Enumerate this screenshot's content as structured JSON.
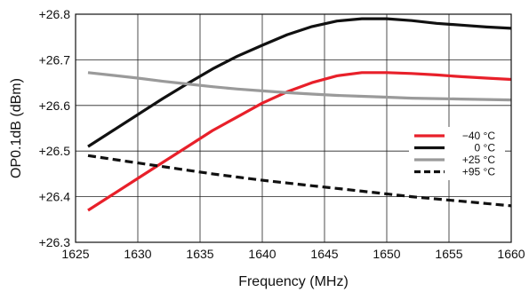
{
  "chart_data": {
    "type": "line",
    "title": "",
    "xlabel": "Frequency (MHz)",
    "ylabel": "OP0.1dB (dBm)",
    "xlim": [
      1625,
      1660
    ],
    "ylim": [
      26.3,
      26.8
    ],
    "xticks": [
      "1625",
      "1630",
      "1635",
      "1640",
      "1645",
      "1650",
      "1655",
      "1660"
    ],
    "yticks": [
      "+26.3",
      "+26.4",
      "+26.5",
      "+26.6",
      "+26.7",
      "+26.8"
    ],
    "grid": true,
    "legend_position": "center-right",
    "series": [
      {
        "name": "−40 °C",
        "color": "#e8202a",
        "dash": "solid",
        "x": [
          1626,
          1628,
          1630,
          1632,
          1634,
          1636,
          1638,
          1640,
          1642,
          1644,
          1646,
          1648,
          1650,
          1652,
          1654,
          1656,
          1658,
          1660
        ],
        "y": [
          26.37,
          26.405,
          26.44,
          26.475,
          26.51,
          26.545,
          26.575,
          26.605,
          26.63,
          26.65,
          26.665,
          26.672,
          26.672,
          26.67,
          26.667,
          26.663,
          26.66,
          26.657
        ]
      },
      {
        "name": "0 °C",
        "color": "#111111",
        "dash": "solid",
        "x": [
          1626,
          1628,
          1630,
          1632,
          1634,
          1636,
          1638,
          1640,
          1642,
          1644,
          1646,
          1648,
          1650,
          1652,
          1654,
          1656,
          1658,
          1660
        ],
        "y": [
          26.51,
          26.545,
          26.58,
          26.615,
          26.648,
          26.68,
          26.708,
          26.732,
          26.755,
          26.773,
          26.785,
          26.79,
          26.79,
          26.786,
          26.78,
          26.776,
          26.772,
          26.769
        ]
      },
      {
        "name": "+25 °C",
        "color": "#9a9a9a",
        "dash": "solid",
        "x": [
          1626,
          1628,
          1630,
          1632,
          1634,
          1636,
          1638,
          1640,
          1642,
          1644,
          1646,
          1648,
          1650,
          1652,
          1654,
          1656,
          1658,
          1660
        ],
        "y": [
          26.672,
          26.666,
          26.66,
          26.653,
          26.647,
          26.641,
          26.636,
          26.632,
          26.628,
          26.625,
          26.622,
          26.62,
          26.618,
          26.616,
          26.615,
          26.614,
          26.613,
          26.612
        ]
      },
      {
        "name": "+95 °C",
        "color": "#111111",
        "dash": "dashed",
        "x": [
          1626,
          1628,
          1630,
          1632,
          1634,
          1636,
          1638,
          1640,
          1642,
          1644,
          1646,
          1648,
          1650,
          1652,
          1654,
          1656,
          1658,
          1660
        ],
        "y": [
          26.49,
          26.482,
          26.474,
          26.466,
          26.458,
          26.45,
          26.443,
          26.436,
          26.43,
          26.424,
          26.418,
          26.412,
          26.406,
          26.4,
          26.395,
          26.39,
          26.385,
          26.38
        ]
      }
    ]
  }
}
